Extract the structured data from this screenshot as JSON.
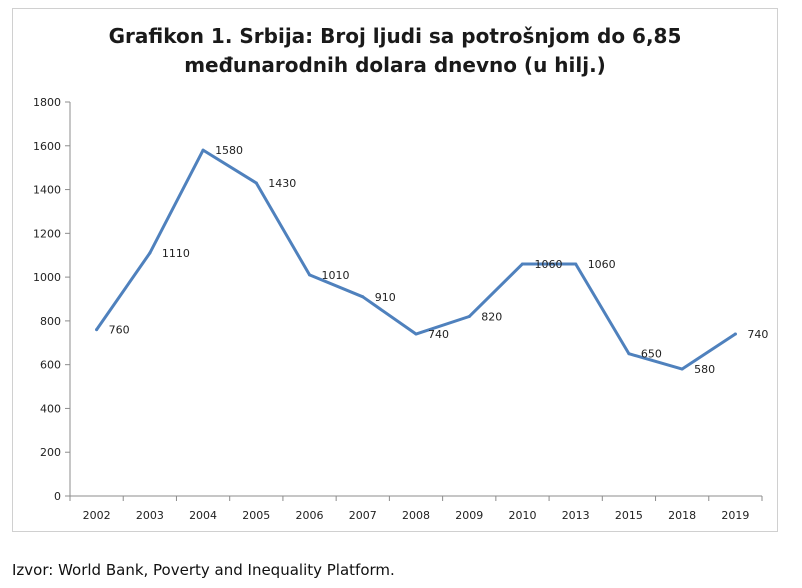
{
  "chart_data": {
    "type": "line",
    "title_lines": [
      "Grafikon 1. Srbija: Broj ljudi sa potrošnjom do 6,85",
      "međunarodnih dolara dnevno (u hilj.)"
    ],
    "categories": [
      "2002",
      "2003",
      "2004",
      "2005",
      "2006",
      "2007",
      "2008",
      "2009",
      "2010",
      "2013",
      "2015",
      "2018",
      "2019"
    ],
    "series": [
      {
        "name": "Broj ljudi (u hilj.)",
        "values": [
          760,
          1110,
          1580,
          1430,
          1010,
          910,
          740,
          820,
          1060,
          1060,
          650,
          580,
          740
        ]
      }
    ],
    "data_labels": [
      "760",
      "1110",
      "1580",
      "1430",
      "1010",
      "910",
      "740",
      "820",
      "1060",
      "1060",
      "650",
      "580",
      "740"
    ],
    "y_ticks": [
      "0",
      "200",
      "400",
      "600",
      "800",
      "1000",
      "1200",
      "1400",
      "1600",
      "1800"
    ],
    "ylim": [
      0,
      1800
    ],
    "xlabel": "",
    "ylabel": "",
    "grid": false,
    "line_color": "#4f81bd"
  },
  "source": "Izvor: World Bank, Poverty and Inequality Platform."
}
